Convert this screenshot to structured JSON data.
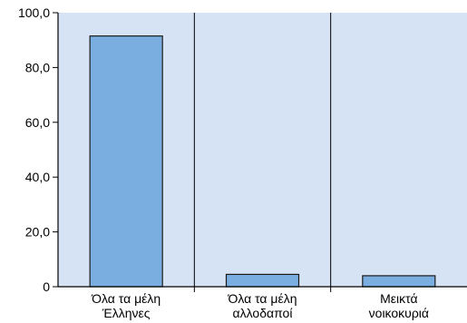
{
  "chart_data": {
    "type": "bar",
    "categories": [
      [
        "Όλα τα μέλη",
        "Έλληνες"
      ],
      [
        "Όλα τα μέλη",
        "αλλοδαποί"
      ],
      [
        "Μεικτά",
        "νοικοκυριά"
      ]
    ],
    "values": [
      91.5,
      4.5,
      4.0
    ],
    "ylim": [
      0,
      100
    ],
    "yticks": [
      {
        "value": 0,
        "label": "0"
      },
      {
        "value": 20,
        "label": "20,0"
      },
      {
        "value": 40,
        "label": "40,0"
      },
      {
        "value": 60,
        "label": "60,0"
      },
      {
        "value": 80,
        "label": "80,0"
      },
      {
        "value": 100,
        "label": "100,0"
      }
    ],
    "grid": "vertical separators between categories",
    "legend": "none",
    "colors": {
      "plot_background": "#d6e3f5",
      "bar_fill": "#7aaee0",
      "bar_stroke": "#1a1a1a",
      "axis": "#000000"
    }
  }
}
